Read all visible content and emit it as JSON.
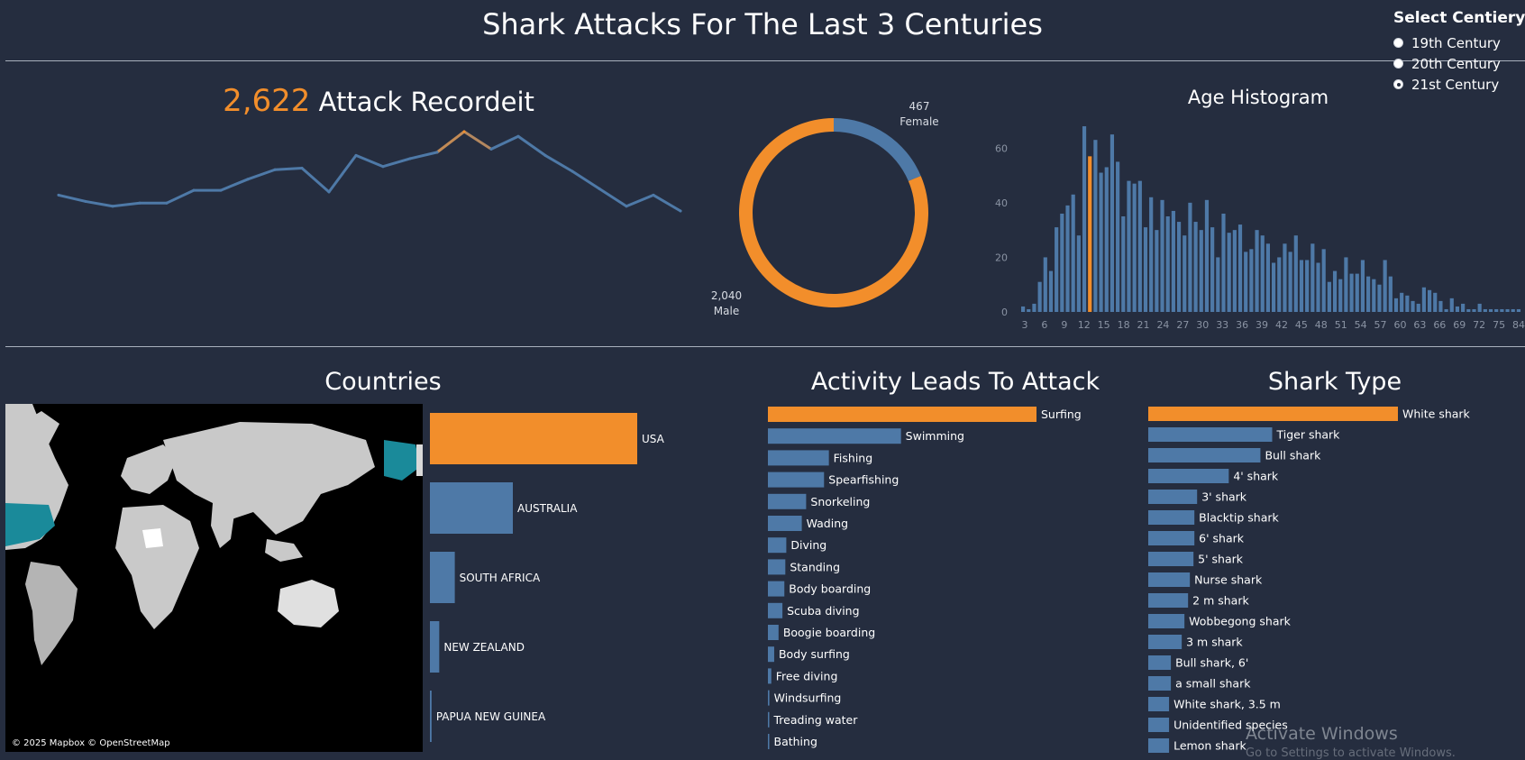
{
  "header": {
    "title": "Shark Attacks For The Last 3 Centuries"
  },
  "filter": {
    "title": "Select Centiery",
    "options": [
      {
        "label": "19th Century",
        "selected": false
      },
      {
        "label": "20th Century",
        "selected": false
      },
      {
        "label": "21st Century",
        "selected": true
      }
    ]
  },
  "kpi": {
    "value": "2,622",
    "label": "Attack Recordeit"
  },
  "colors": {
    "accent": "#f28e2b",
    "primary": "#4e79a7",
    "background": "#252d3f",
    "map_highlight": "#1a8a9a"
  },
  "chart_data": [
    {
      "type": "line",
      "values": [
        8,
        4,
        1,
        3,
        3,
        11,
        11,
        18,
        24,
        25,
        10,
        33,
        26,
        31,
        35,
        48,
        37,
        45,
        33,
        23,
        12,
        1,
        8,
        -2
      ],
      "highlight_index": 15
    },
    {
      "type": "pie",
      "donut": true,
      "slices": [
        {
          "label": "Female",
          "value": 467,
          "value_label": "467"
        },
        {
          "label": "Male",
          "value": 2040,
          "value_label": "2,040"
        }
      ]
    },
    {
      "type": "bar",
      "title": "Age Histogram",
      "x_start": 3,
      "highlight_x": 15,
      "ylim": [
        0,
        70
      ],
      "y_ticks": [
        0,
        20,
        40,
        60
      ],
      "x_tick_labels": [
        "3",
        "6",
        "9",
        "12",
        "15",
        "18",
        "21",
        "24",
        "27",
        "30",
        "33",
        "36",
        "39",
        "42",
        "45",
        "48",
        "51",
        "54",
        "57",
        "60",
        "63",
        "66",
        "69",
        "72",
        "75",
        "84"
      ],
      "values": [
        2,
        1,
        3,
        11,
        20,
        15,
        31,
        36,
        39,
        43,
        28,
        68,
        57,
        63,
        51,
        53,
        65,
        55,
        35,
        48,
        47,
        48,
        31,
        42,
        30,
        41,
        35,
        37,
        33,
        28,
        40,
        33,
        30,
        41,
        31,
        20,
        36,
        29,
        30,
        32,
        22,
        23,
        30,
        28,
        25,
        18,
        20,
        25,
        22,
        28,
        19,
        19,
        25,
        18,
        23,
        11,
        15,
        12,
        20,
        14,
        14,
        19,
        13,
        12,
        10,
        19,
        13,
        5,
        7,
        6,
        4,
        3,
        9,
        8,
        7,
        4,
        1,
        5,
        2,
        3,
        1,
        1,
        3,
        1,
        1,
        1,
        1,
        1,
        1,
        1
      ]
    },
    {
      "type": "bar",
      "orientation": "horizontal",
      "title": "Countries",
      "categories": [
        "USA",
        "AUSTRALIA",
        "SOUTH AFRICA",
        "NEW ZEALAND",
        "PAPUA NEW GUINEA"
      ],
      "values": [
        1000,
        400,
        120,
        45,
        8
      ],
      "highlight_index": 0
    },
    {
      "type": "bar",
      "orientation": "horizontal",
      "title": "Activity Leads To Attack",
      "categories": [
        "Surfing",
        "Swimming",
        "Fishing",
        "Spearfishing",
        "Snorkeling",
        "Wading",
        "Diving",
        "Standing",
        "Body boarding",
        "Scuba diving",
        "Boogie boarding",
        "Body surfing",
        "Free diving",
        "Windsurfing",
        "Treading water",
        "Bathing"
      ],
      "values": [
        555,
        275,
        126,
        116,
        79,
        70,
        38,
        36,
        34,
        30,
        22,
        13,
        7,
        3,
        2,
        2
      ],
      "highlight_index": 0
    },
    {
      "type": "bar",
      "orientation": "horizontal",
      "title": "Shark Type",
      "categories": [
        "White shark",
        "Tiger shark",
        "Bull shark",
        "4' shark",
        "3' shark",
        "Blacktip shark",
        "6' shark",
        "5' shark",
        "Nurse shark",
        "2 m shark",
        "Wobbegong shark",
        "3 m shark",
        "Bull shark, 6'",
        "a small shark",
        "White shark, 3.5 m",
        "Unidentified species",
        "Lemon shark"
      ],
      "values": [
        276,
        137,
        124,
        89,
        54,
        51,
        51,
        50,
        46,
        44,
        40,
        37,
        25,
        25,
        23,
        23,
        23
      ],
      "highlight_index": 0
    }
  ],
  "map": {
    "credit": "© 2025 Mapbox © OpenStreetMap"
  },
  "watermark": {
    "line1": "Activate Windows",
    "line2": "Go to Settings to activate Windows."
  }
}
